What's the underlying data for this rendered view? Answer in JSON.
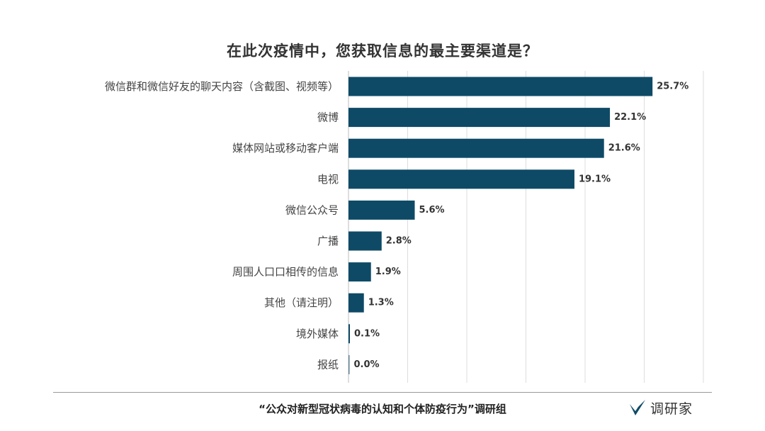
{
  "chart_data": {
    "type": "bar",
    "orientation": "horizontal",
    "title": "在此次疫情中，您获取信息的最主要渠道是？",
    "categories": [
      "微信群和微信好友的聊天内容（含截图、视频等）",
      "微博",
      "媒体网站或移动客户端",
      "电视",
      "微信公众号",
      "广播",
      "周围人口口相传的信息",
      "其他（请注明）",
      "境外媒体",
      "报纸"
    ],
    "values": [
      25.7,
      22.1,
      21.6,
      19.1,
      5.6,
      2.8,
      1.9,
      1.3,
      0.1,
      0.0
    ],
    "value_labels": [
      "25.7%",
      "22.1%",
      "21.6%",
      "19.1%",
      "5.6%",
      "2.8%",
      "1.9%",
      "1.3%",
      "0.1%",
      "0.0%"
    ],
    "xlim": [
      0,
      30
    ],
    "grid": true,
    "bar_color": "#0e4a66"
  },
  "footer": {
    "source": "“公众对新型冠状病毒的认知和个体防疫行为”调研组",
    "logo_text": "调研家"
  },
  "colors": {
    "bar": "#0e4a66",
    "logo_accent": "#0e4a66"
  }
}
